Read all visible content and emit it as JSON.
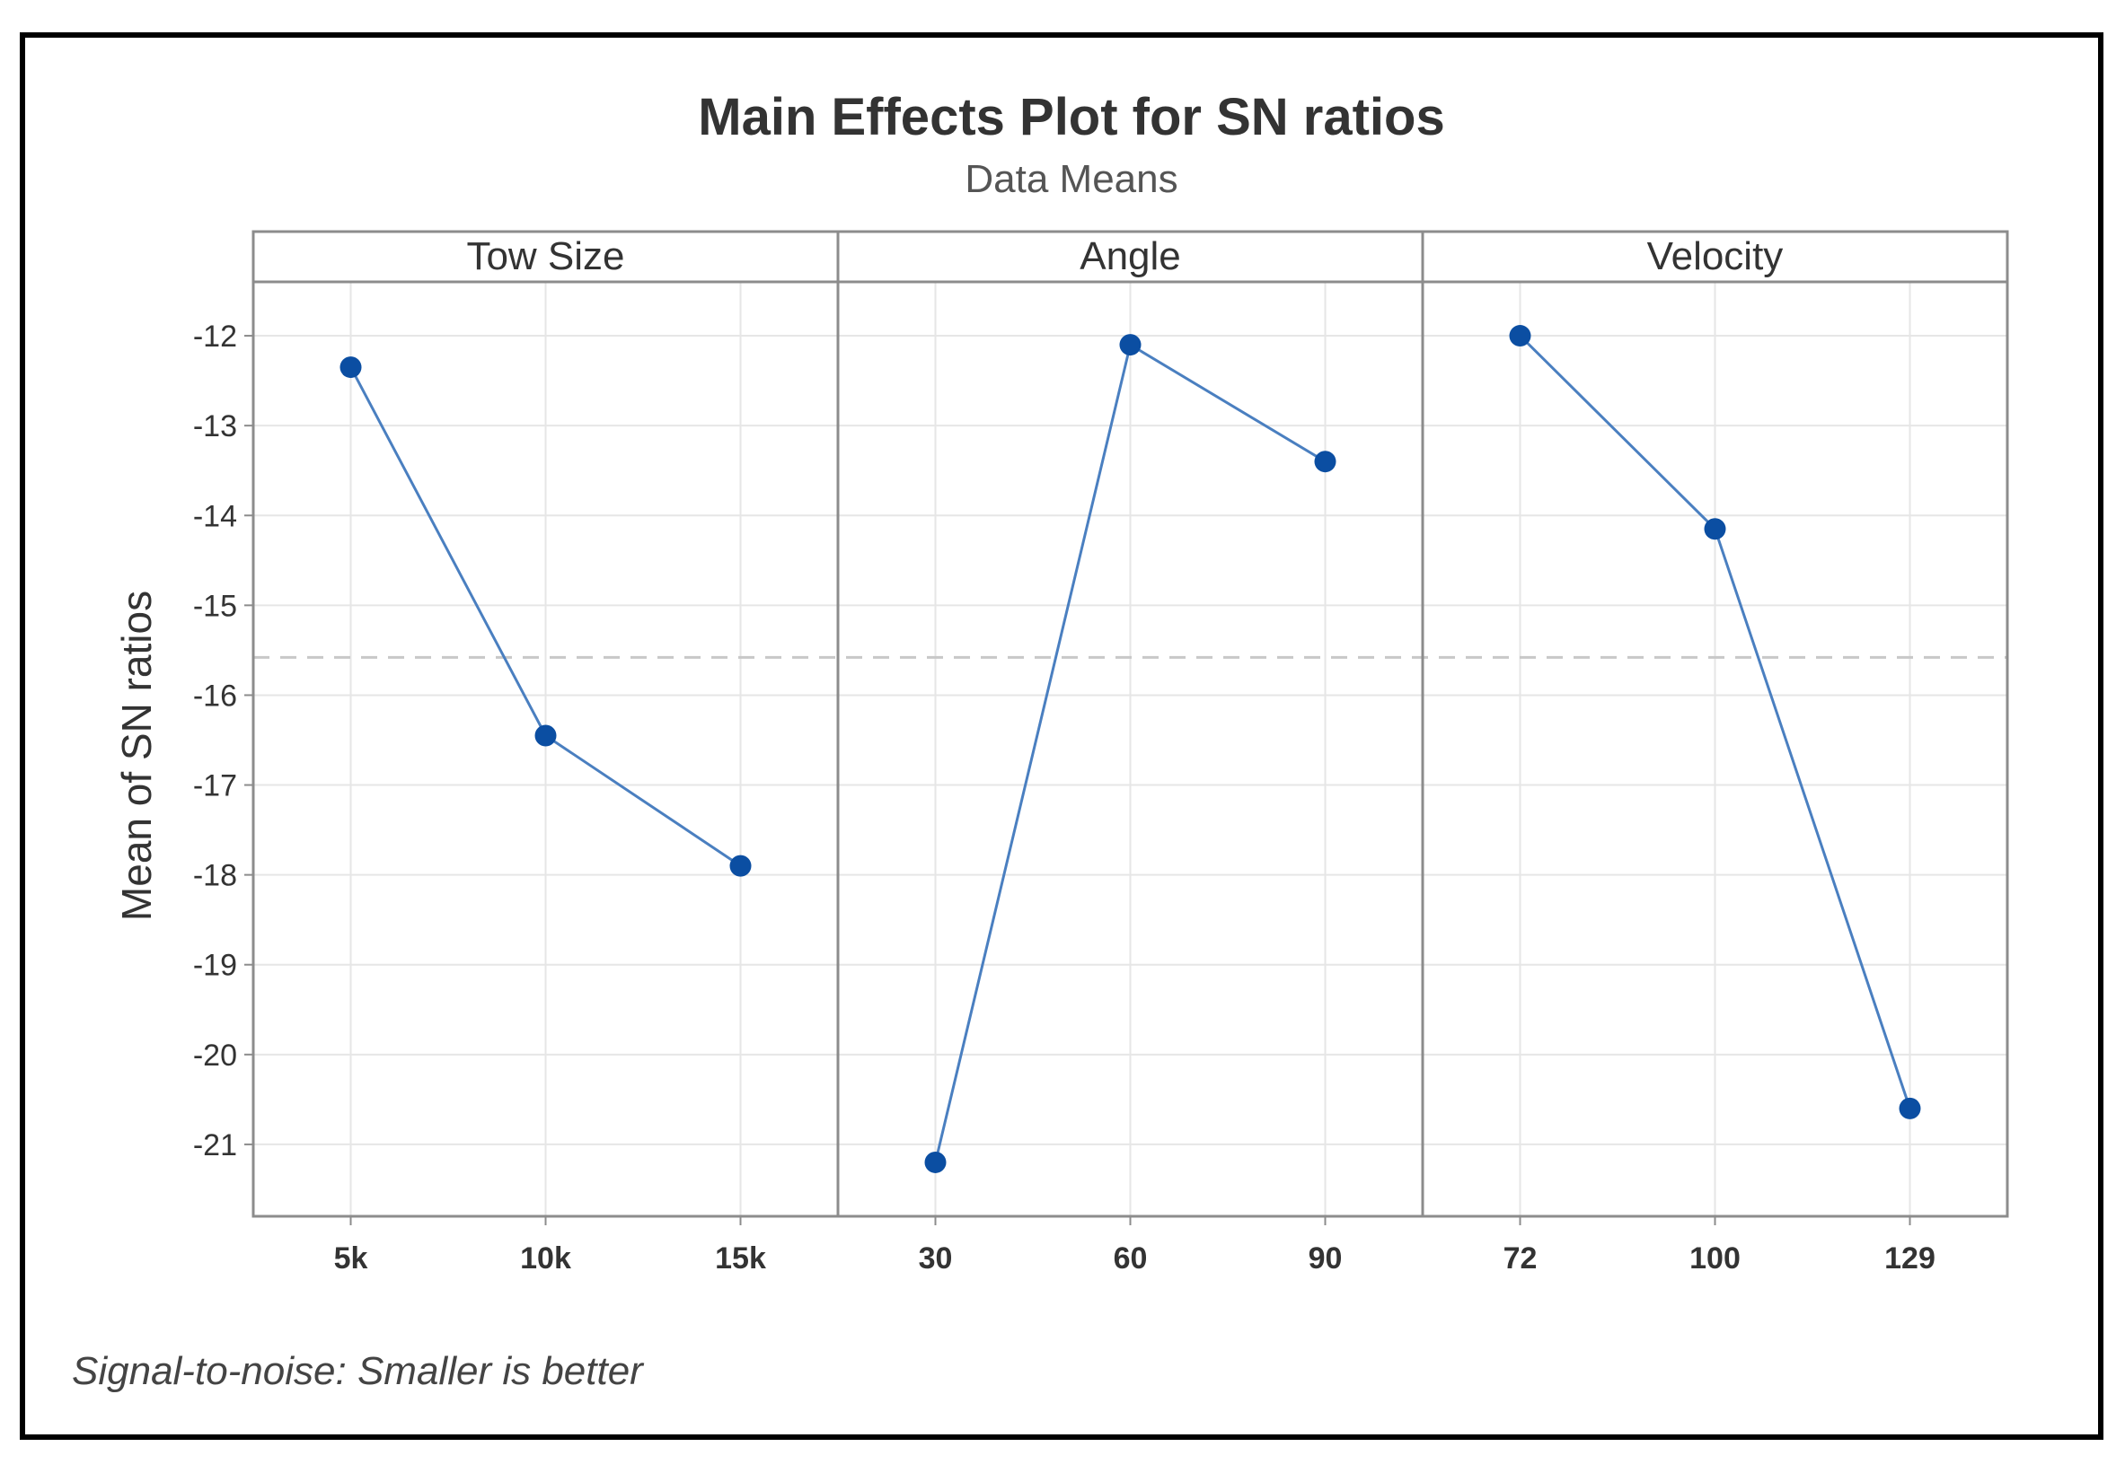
{
  "chart_data": {
    "type": "line",
    "title": "Main Effects Plot for SN ratios",
    "subtitle": "Data Means",
    "ylabel": "Mean of SN ratios",
    "ylim": [
      -21.8,
      -11.4
    ],
    "yticks": [
      -12,
      -13,
      -14,
      -15,
      -16,
      -17,
      -18,
      -19,
      -20,
      -21
    ],
    "ytick_labels": [
      "-12",
      "-13",
      "-14",
      "-15",
      "-16",
      "-17",
      "-18",
      "-19",
      "-20",
      "-21"
    ],
    "reference_line": -15.58,
    "footnote": "Signal-to-noise: Smaller is better",
    "colors": {
      "line": "#4a7fc0",
      "marker": "#0b4ea2",
      "grid": "#e6e6e6",
      "reference": "#c8c8c8",
      "panel_border": "#8c8c8c"
    },
    "panels": [
      {
        "name": "Tow Size",
        "categories": [
          "5k",
          "10k",
          "15k"
        ],
        "values": [
          -12.35,
          -16.45,
          -17.9
        ]
      },
      {
        "name": "Angle",
        "categories": [
          "30",
          "60",
          "90"
        ],
        "values": [
          -21.2,
          -12.1,
          -13.4
        ]
      },
      {
        "name": "Velocity",
        "categories": [
          "72",
          "100",
          "129"
        ],
        "values": [
          -12.0,
          -14.15,
          -20.6
        ]
      }
    ]
  }
}
